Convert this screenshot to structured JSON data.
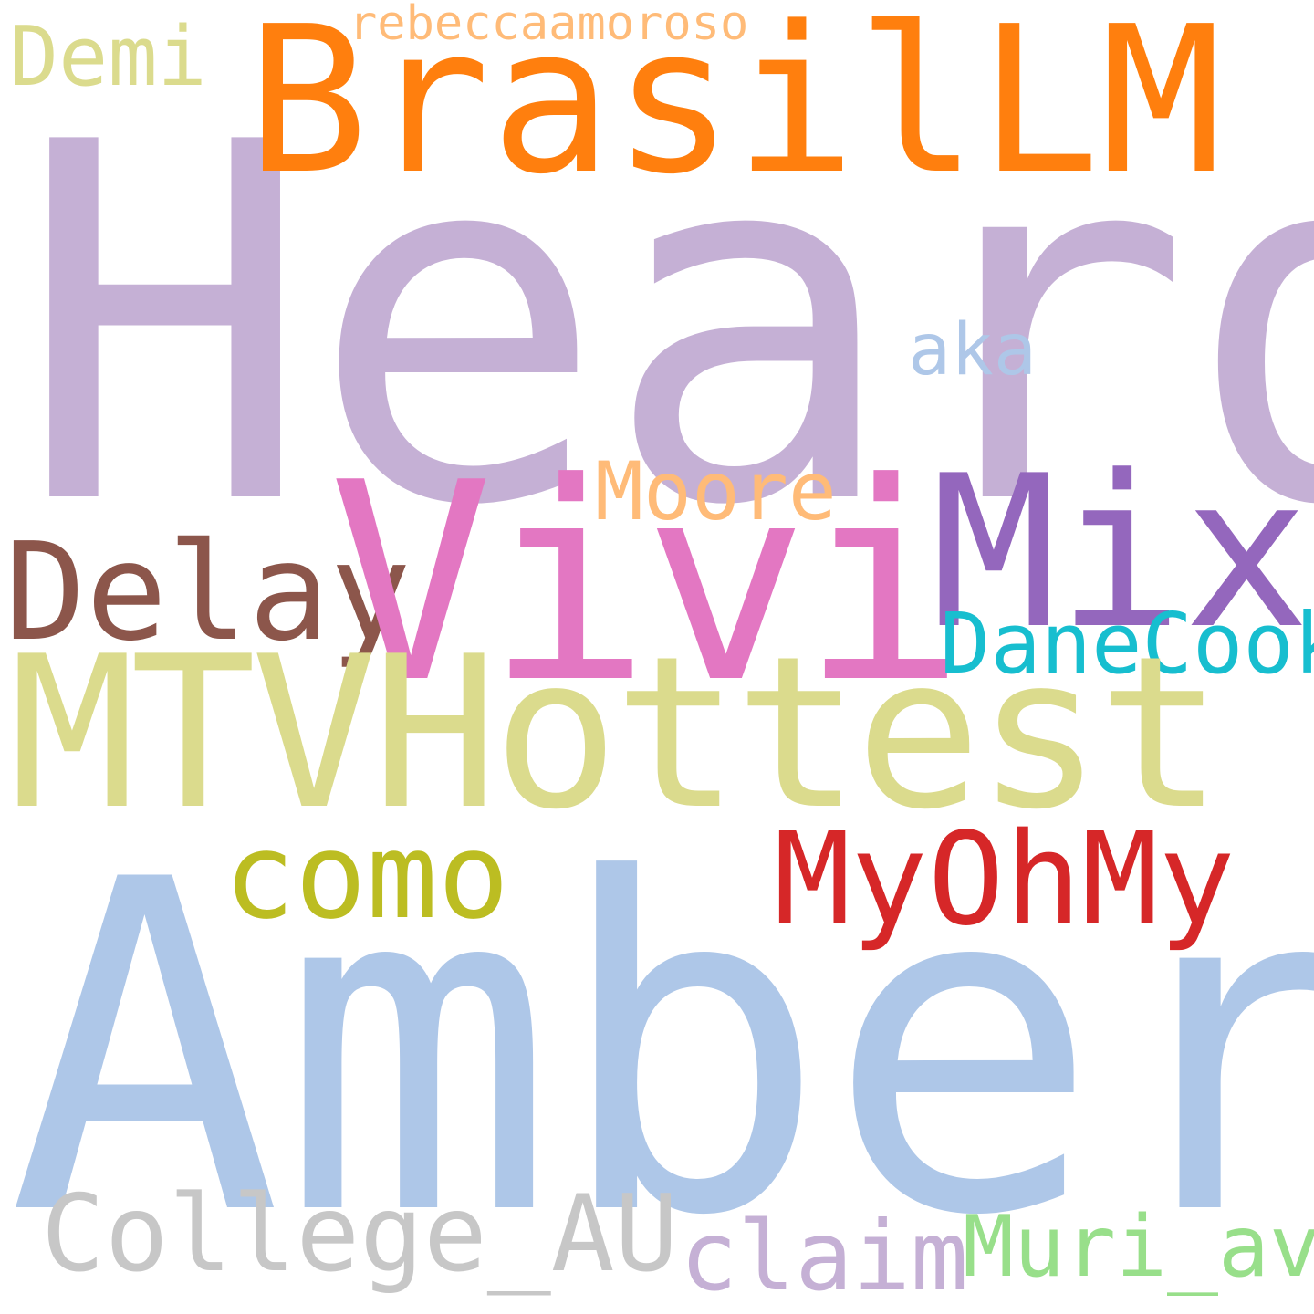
{
  "words": {
    "heard": {
      "text": "Heard",
      "color": "#c5b0d5"
    },
    "amber": {
      "text": "Amber",
      "color": "#aec7e8"
    },
    "brasillm": {
      "text": "BrasilLM",
      "color": "#ff7f0e"
    },
    "vivi": {
      "text": "Vivi",
      "color": "#e377c2"
    },
    "mtvhottest": {
      "text": "MTVHottest",
      "color": "#dbdb8d"
    },
    "mix": {
      "text": "Mix",
      "color": "#9467bd"
    },
    "delay": {
      "text": "Delay",
      "color": "#8c564b"
    },
    "myohmy": {
      "text": "MyOhMy",
      "color": "#d62728"
    },
    "como": {
      "text": "como",
      "color": "#bcbd22"
    },
    "danecook": {
      "text": "DaneCook",
      "color": "#17becf"
    },
    "college": {
      "text": "College_AU",
      "color": "#c7c7c7"
    },
    "claim": {
      "text": "claim",
      "color": "#c5b0d5"
    },
    "muri": {
      "text": "Muri_av",
      "color": "#98df8a"
    },
    "moore": {
      "text": "Moore",
      "color": "#ffbb78"
    },
    "aka": {
      "text": "aka",
      "color": "#aec7e8"
    },
    "demi": {
      "text": "Demi",
      "color": "#dbdb8d"
    },
    "rebecca": {
      "text": "rebeccaamoroso",
      "color": "#ffbb78"
    }
  }
}
